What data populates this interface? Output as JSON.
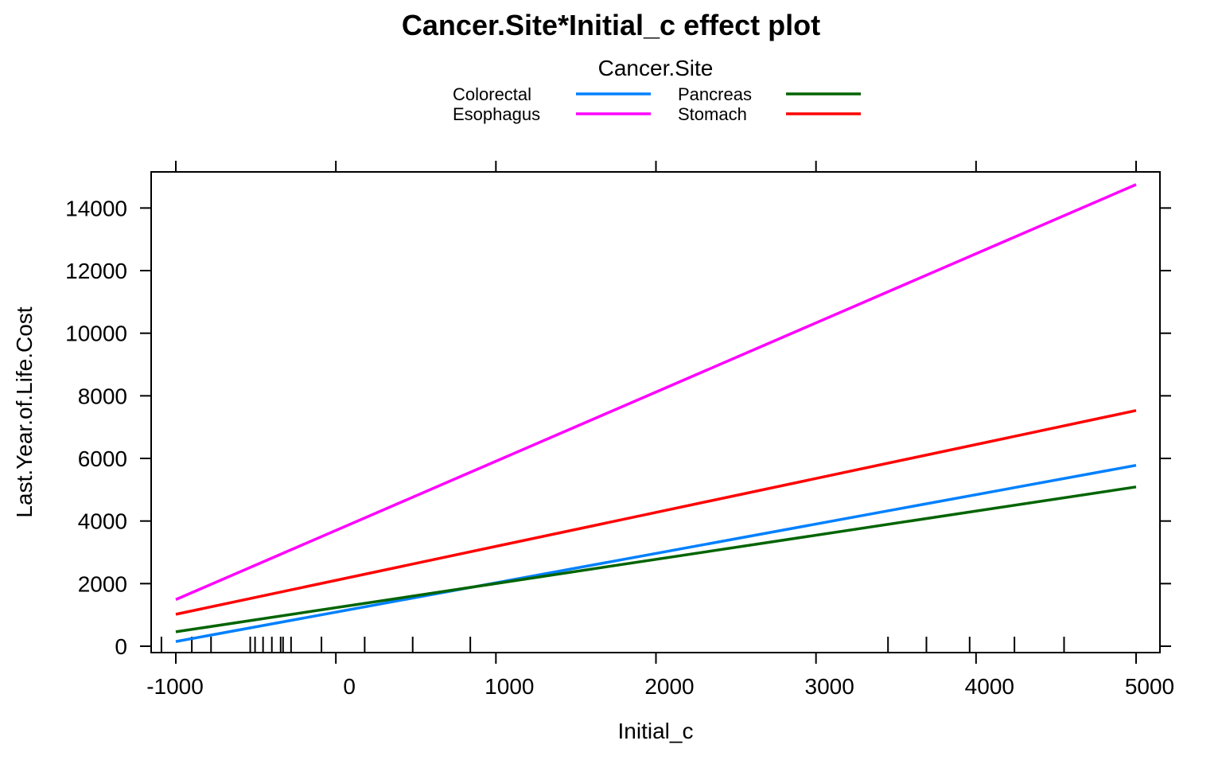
{
  "chart_data": {
    "type": "line",
    "title": "Cancer.Site*Initial_c effect plot",
    "xlabel": "Initial_c",
    "ylabel": "Last.Year.of.Life.Cost",
    "xlim": [
      -1000,
      5000
    ],
    "ylim": [
      0,
      15000
    ],
    "x_ticks": [
      -1000,
      0,
      1000,
      2000,
      3000,
      4000,
      5000
    ],
    "x_tick_labels": [
      "-1000",
      "0",
      "1000",
      "2000",
      "3000",
      "4000",
      "5000"
    ],
    "y_ticks": [
      0,
      2000,
      4000,
      6000,
      8000,
      10000,
      12000,
      14000
    ],
    "y_tick_labels": [
      "0",
      "2000",
      "4000",
      "6000",
      "8000",
      "10000",
      "12000",
      "14000"
    ],
    "legend": {
      "title": "Cancer.Site",
      "placement": "top-center",
      "entries": [
        "Colorectal",
        "Esophagus",
        "Pancreas",
        "Stomach"
      ]
    },
    "x": [
      -1000,
      5000
    ],
    "series": [
      {
        "name": "Colorectal",
        "color": "#0080ff",
        "values": [
          150,
          5780
        ]
      },
      {
        "name": "Esophagus",
        "color": "#ff00ff",
        "values": [
          1490,
          14750
        ]
      },
      {
        "name": "Pancreas",
        "color": "#006400",
        "values": [
          460,
          5090
        ]
      },
      {
        "name": "Stomach",
        "color": "#ff0000",
        "values": [
          1020,
          7530
        ]
      }
    ],
    "rug_x": [
      -1090,
      -900,
      -780,
      -535,
      -505,
      -455,
      -400,
      -345,
      -330,
      -280,
      -90,
      180,
      480,
      840,
      3450,
      3690,
      3960,
      4240,
      4550
    ],
    "grid": false
  }
}
